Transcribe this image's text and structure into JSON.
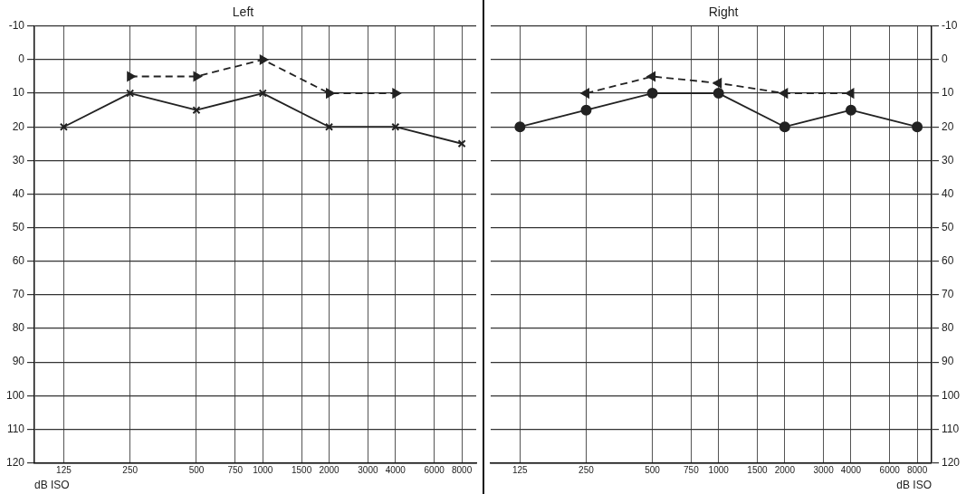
{
  "chart_data": [
    {
      "type": "line",
      "title": "Left",
      "xlabel": "dB ISO",
      "log": "x",
      "x": [
        125,
        250,
        500,
        1000,
        2000,
        4000,
        8000
      ],
      "xlim": [
        92,
        9300
      ],
      "xticks": [
        125,
        250,
        500,
        750,
        1000,
        1500,
        2000,
        3000,
        4000,
        6000,
        8000
      ],
      "ylim": [
        120,
        -10
      ],
      "yticks": [
        -10,
        0,
        10,
        20,
        30,
        40,
        50,
        60,
        70,
        80,
        90,
        100,
        110,
        120
      ],
      "grid": true,
      "legend": false,
      "series": [
        {
          "color": "#222222",
          "marker": "cross",
          "line_style": "solid",
          "values": [
            20,
            10,
            15,
            10,
            20,
            20,
            25
          ]
        },
        {
          "color": "#222222",
          "marker": "triangle",
          "line_style": "dashed",
          "x": [
            250,
            500,
            1000,
            2000,
            4000
          ],
          "values": [
            5,
            5,
            0,
            10,
            10
          ]
        }
      ]
    },
    {
      "type": "line",
      "title": "Right",
      "xlabel": "dB ISO",
      "log": "x",
      "x": [
        125,
        250,
        500,
        1000,
        2000,
        4000,
        8000
      ],
      "xlim": [
        92,
        9300
      ],
      "xticks": [
        125,
        250,
        500,
        750,
        1000,
        1500,
        2000,
        3000,
        4000,
        6000,
        8000
      ],
      "ylim": [
        120,
        -10
      ],
      "yticks": [
        -10,
        0,
        10,
        20,
        30,
        40,
        50,
        60,
        70,
        80,
        90,
        100,
        110,
        120
      ],
      "grid": true,
      "legend": false,
      "series": [
        {
          "color": "#222222",
          "marker": "circle",
          "line_style": "solid",
          "values": [
            20,
            15,
            10,
            10,
            20,
            15,
            20
          ]
        },
        {
          "color": "#222222",
          "marker": "triangle",
          "line_style": "dashed",
          "x": [
            250,
            500,
            1000,
            2000,
            4000
          ],
          "values": [
            10,
            5,
            7,
            10,
            10
          ]
        }
      ]
    }
  ]
}
